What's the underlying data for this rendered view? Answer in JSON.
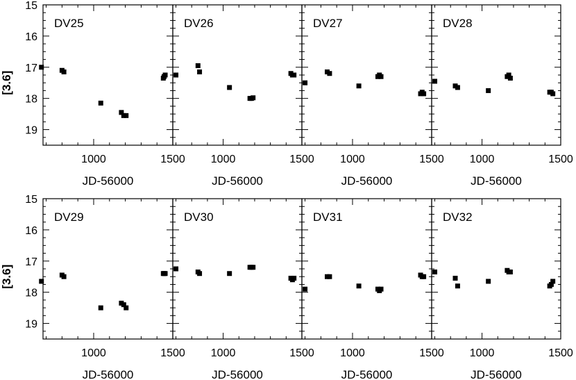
{
  "chart_data": {
    "type": "scatter",
    "grid": false,
    "ylabel": "[3.6]",
    "xlabel": "JD-56000",
    "xlim": [
      680,
      1500
    ],
    "ylim": [
      15,
      19.5
    ],
    "y_inverted": true,
    "yticks": [
      15,
      16,
      17,
      18,
      19
    ],
    "xticks": [
      1000,
      1500
    ],
    "panels": [
      {
        "title": "DV25",
        "x": [
          670,
          800,
          812,
          1045,
          1175,
          1190,
          1205,
          1440,
          1445,
          1452
        ],
        "y": [
          17.0,
          17.1,
          17.15,
          18.15,
          18.45,
          18.55,
          18.55,
          17.35,
          17.3,
          17.25
        ]
      },
      {
        "title": "DV26",
        "x": [
          700,
          840,
          850,
          1040,
          1170,
          1180,
          1190,
          1430,
          1440,
          1450
        ],
        "y": [
          17.25,
          16.95,
          17.15,
          17.65,
          18.0,
          18.0,
          17.98,
          17.2,
          17.25,
          17.25
        ]
      },
      {
        "title": "DV27",
        "x": [
          700,
          840,
          855,
          1040,
          1160,
          1170,
          1180,
          1430,
          1440,
          1450
        ],
        "y": [
          17.5,
          17.15,
          17.2,
          17.6,
          17.3,
          17.25,
          17.3,
          17.85,
          17.8,
          17.85
        ]
      },
      {
        "title": "DV28",
        "x": [
          700,
          830,
          845,
          1040,
          1160,
          1170,
          1180,
          1430,
          1440,
          1450
        ],
        "y": [
          17.45,
          17.6,
          17.65,
          17.75,
          17.3,
          17.25,
          17.35,
          17.8,
          17.8,
          17.85
        ]
      },
      {
        "title": "DV29",
        "x": [
          670,
          800,
          812,
          1045,
          1175,
          1190,
          1205,
          1440,
          1445,
          1452
        ],
        "y": [
          17.65,
          17.45,
          17.5,
          18.5,
          18.35,
          18.4,
          18.5,
          17.4,
          17.4,
          17.4
        ]
      },
      {
        "title": "DV30",
        "x": [
          700,
          840,
          850,
          1040,
          1170,
          1180,
          1190,
          1430,
          1440,
          1450
        ],
        "y": [
          17.25,
          17.35,
          17.4,
          17.4,
          17.2,
          17.2,
          17.2,
          17.55,
          17.6,
          17.55
        ]
      },
      {
        "title": "DV31",
        "x": [
          700,
          840,
          855,
          1040,
          1160,
          1170,
          1180,
          1430,
          1440,
          1450
        ],
        "y": [
          17.9,
          17.5,
          17.5,
          17.8,
          17.9,
          17.95,
          17.9,
          17.45,
          17.5,
          17.5
        ]
      },
      {
        "title": "DV32",
        "x": [
          700,
          830,
          845,
          1040,
          1160,
          1170,
          1180,
          1430,
          1440,
          1450
        ],
        "y": [
          17.35,
          17.55,
          17.8,
          17.65,
          17.3,
          17.35,
          17.35,
          17.8,
          17.75,
          17.65
        ]
      }
    ]
  }
}
